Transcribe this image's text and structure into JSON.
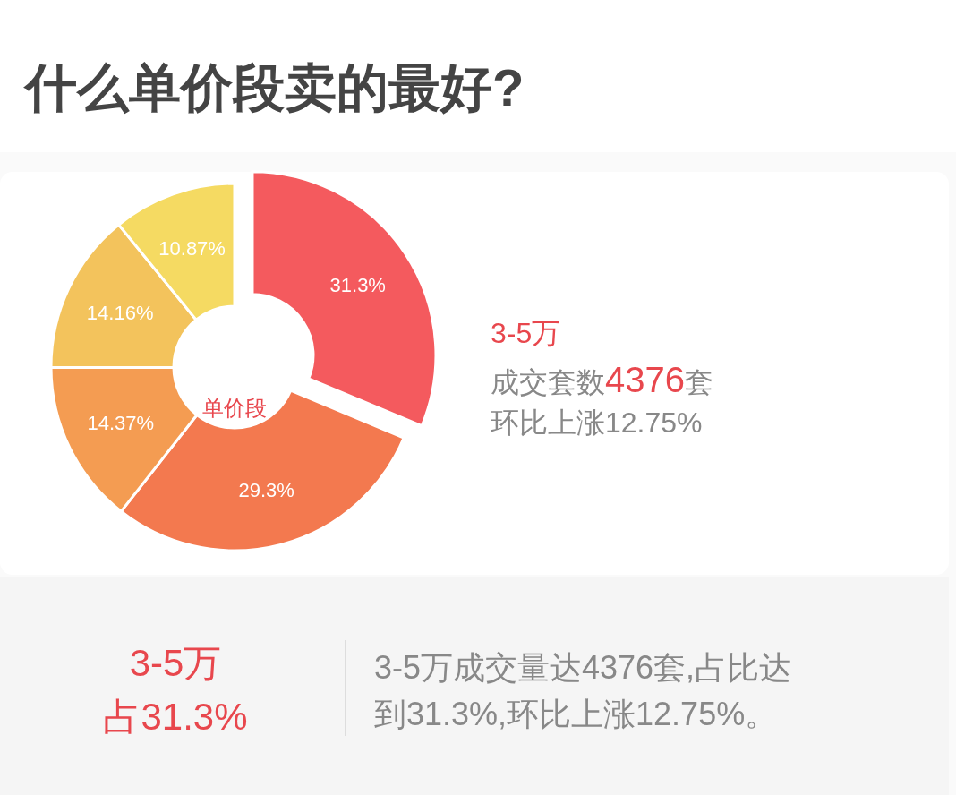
{
  "chart_data": {
    "type": "donut",
    "title": "什么单价段卖的最好?",
    "categories": [
      null,
      null,
      null,
      null,
      null
    ],
    "values": [
      31.3,
      29.3,
      14.37,
      14.16,
      10.87
    ],
    "colors": [
      "#f45a5e",
      "#f3794f",
      "#f49c52",
      "#f3c35c",
      "#f5da62"
    ],
    "value_labels": [
      "31.3%",
      "29.3%",
      "14.37%",
      "14.16%",
      "10.87%"
    ],
    "annotations": [
      "单价段",
      "3-5万",
      "成交套数4376套",
      "环比上涨12.75%",
      "3-5万",
      "占31.3%",
      "3-5万成交量达4376套,占比达",
      "到31.3%,环比上涨12.75%。"
    ]
  }
}
